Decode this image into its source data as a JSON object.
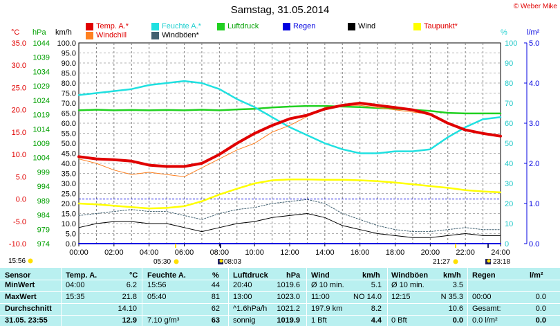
{
  "title": "Samstag, 31.05.2014",
  "copyright": "© Weber Mike",
  "legend": [
    {
      "label": "Temp. A.*",
      "color": "#e00000"
    },
    {
      "label": "Windchill",
      "color": "#ff8020"
    },
    {
      "label": "Feuchte A.*",
      "color": "#20e0e0"
    },
    {
      "label": "Windböen*",
      "color": "#406070"
    },
    {
      "label": "Luftdruck",
      "color": "#20d020"
    },
    {
      "label": "Regen",
      "color": "#0000e0"
    },
    {
      "label": "Wind",
      "color": "#000000"
    },
    {
      "label": "Taupunkt*",
      "color": "#ffff00"
    }
  ],
  "axis_headers": {
    "temp": "°C",
    "pressure": "hPa",
    "wind": "km/h",
    "humidity": "%",
    "rain": "l/m²"
  },
  "markers": {
    "sunrise_label": "15:56",
    "sunrise": "05:30",
    "moonrise": "08:03",
    "sunset": "21:27",
    "moonset": "23:18"
  },
  "chart_data": {
    "type": "line",
    "title": "Samstag, 31.05.2014",
    "x_ticks": [
      "00:00",
      "02:00",
      "04:00",
      "06:00",
      "08:00",
      "10:00",
      "12:00",
      "14:00",
      "16:00",
      "18:00",
      "20:00",
      "22:00",
      "24:00"
    ],
    "temp_ticks": [
      "35.0",
      "30.0",
      "25.0",
      "20.0",
      "15.0",
      "10.0",
      "5.0",
      "0.0",
      "-5.0",
      "-10.0"
    ],
    "pressure_ticks": [
      "1044",
      "1039",
      "1034",
      "1029",
      "1024",
      "1019",
      "1014",
      "1009",
      "1004",
      "999",
      "994",
      "989",
      "984",
      "979",
      "974"
    ],
    "wind_ticks": [
      "100.0",
      "95.0",
      "90.0",
      "85.0",
      "80.0",
      "75.0",
      "70.0",
      "65.0",
      "60.0",
      "55.0",
      "50.0",
      "45.0",
      "40.0",
      "35.0",
      "30.0",
      "25.0",
      "20.0",
      "15.0",
      "10.0",
      "5.0",
      "0.0"
    ],
    "humidity_ticks": [
      "100",
      "90",
      "80",
      "70",
      "60",
      "50",
      "40",
      "30",
      "20",
      "10",
      "0"
    ],
    "rain_ticks": [
      "5.0",
      "4.0",
      "3.0",
      "2.0",
      "1.0",
      "0.0"
    ],
    "ylim_temp": [
      -10,
      35
    ],
    "ylim_pressure": [
      974,
      1044
    ],
    "ylim_wind": [
      0,
      100
    ],
    "ylim_humidity": [
      0,
      100
    ],
    "ylim_rain": [
      0,
      5
    ],
    "x_hours": [
      0,
      1,
      2,
      3,
      4,
      5,
      6,
      7,
      8,
      9,
      10,
      11,
      12,
      13,
      14,
      15,
      16,
      17,
      18,
      19,
      20,
      21,
      22,
      23,
      24
    ],
    "series": [
      {
        "name": "Temp. A.*",
        "axis": "temp",
        "values": [
          9.5,
          9.0,
          8.8,
          8.5,
          7.6,
          7.3,
          7.3,
          8.0,
          10.0,
          12.5,
          14.7,
          16.5,
          18.0,
          18.8,
          20.2,
          21.0,
          21.5,
          21.0,
          20.5,
          20.0,
          19.0,
          17.0,
          15.5,
          14.7,
          14.1
        ]
      },
      {
        "name": "Windchill",
        "axis": "temp",
        "values": [
          9.0,
          8.0,
          6.5,
          5.5,
          6.0,
          5.5,
          5.0,
          7.0,
          9.0,
          11.0,
          12.5,
          15.0,
          16.5,
          18.5,
          20.5,
          21.0,
          21.0,
          20.5,
          20.0,
          19.5,
          19.0,
          17.0,
          15.5,
          14.5,
          14.0
        ]
      },
      {
        "name": "Feuchte A.*",
        "axis": "humidity",
        "values": [
          74,
          75,
          76,
          77,
          79,
          80,
          81,
          80,
          77,
          72,
          68,
          63,
          58,
          54,
          50,
          47,
          45,
          45,
          46,
          46,
          47,
          53,
          58,
          62,
          63
        ]
      },
      {
        "name": "Luftdruck",
        "axis": "pressure",
        "values": [
          1020.5,
          1020.7,
          1020.5,
          1020.6,
          1020.5,
          1020.6,
          1020.5,
          1020.7,
          1020.5,
          1020.8,
          1021.0,
          1021.5,
          1021.8,
          1022.0,
          1022.0,
          1021.8,
          1021.6,
          1021.3,
          1021.0,
          1020.7,
          1020.3,
          1019.6,
          1019.4,
          1019.4,
          1019.4
        ]
      },
      {
        "name": "Taupunkt*",
        "axis": "temp",
        "values": [
          -1.0,
          -1.2,
          -1.5,
          -1.8,
          -2.1,
          -2.0,
          -1.6,
          -0.5,
          1.0,
          2.3,
          3.5,
          4.2,
          4.4,
          4.4,
          4.3,
          4.3,
          4.2,
          4.0,
          3.7,
          3.3,
          2.9,
          2.5,
          2.0,
          1.7,
          1.5
        ]
      },
      {
        "name": "Wind",
        "axis": "wind",
        "values": [
          8,
          10,
          11,
          11,
          10,
          10,
          8,
          6,
          8,
          10,
          11,
          13,
          14,
          15,
          13,
          9,
          7,
          5,
          4,
          3,
          3,
          4,
          5,
          4,
          4
        ]
      },
      {
        "name": "Windböen*",
        "axis": "wind",
        "values": [
          14,
          15,
          16,
          17,
          16,
          16,
          14,
          12,
          15,
          17,
          18,
          20,
          21,
          22,
          20,
          15,
          12,
          9,
          7,
          6,
          6,
          7,
          8,
          7,
          7
        ]
      },
      {
        "name": "Regen",
        "axis": "rain",
        "values": [
          0,
          0,
          0,
          0,
          0,
          0,
          0,
          0,
          0,
          0,
          0,
          0,
          0,
          0,
          0,
          0,
          0,
          0,
          0,
          0,
          0,
          0,
          0,
          0,
          0
        ]
      }
    ],
    "grid": true
  },
  "table": {
    "headers": {
      "sensor": "Sensor",
      "temp": "Temp. A.",
      "temp_unit": "°C",
      "hum": "Feuchte A.",
      "hum_unit": "%",
      "press": "Luftdruck",
      "press_unit": "hPa",
      "wind": "Wind",
      "wind_unit": "km/h",
      "gust": "Windböen",
      "gust_unit": "km/h",
      "rain": "Regen",
      "rain_unit": "l/m²"
    },
    "rows": [
      {
        "label": "MinWert",
        "temp_time": "04:00",
        "temp_val": "6.2",
        "hum_time": "15:56",
        "hum_val": "44",
        "press_time": "20:40",
        "press_val": "1019.6",
        "wind_a": "Ø 10 min.",
        "wind_val": "5.1",
        "gust_a": "Ø 10 min.",
        "gust_val": "3.5",
        "rain_a": "",
        "rain_val": ""
      },
      {
        "label": "MaxWert",
        "temp_time": "15:35",
        "temp_val": "21.8",
        "hum_time": "05:40",
        "hum_val": "81",
        "press_time": "13:00",
        "press_val": "1023.0",
        "wind_a": "11:00",
        "wind_b": "NO 14.0",
        "gust_a": "12:15",
        "gust_b": "N 35.3",
        "rain_a": "00:00",
        "rain_val": "0.0"
      },
      {
        "label": "Durchschnitt",
        "temp_time": "",
        "temp_val": "14.10",
        "hum_time": "",
        "hum_val": "62",
        "press_time": "^1.6hPa/h",
        "press_val": "1021.2",
        "wind_a": "197.9 km",
        "wind_val": "8.2",
        "gust_a": "",
        "gust_val": "10.6",
        "rain_a": "Gesamt:",
        "rain_val": "0.0"
      },
      {
        "label": "31.05. 23:55",
        "temp_time": "",
        "temp_val": "12.9",
        "hum_time": "7.10 g/m³",
        "hum_val": "63",
        "press_time": "sonnig",
        "press_val": "1019.9",
        "wind_a": "1 Bft",
        "wind_val": "4.4",
        "gust_a": "0 Bft",
        "gust_val": "0.0",
        "rain_a": "0.0 l/m²",
        "rain_val": "0.0"
      }
    ]
  }
}
